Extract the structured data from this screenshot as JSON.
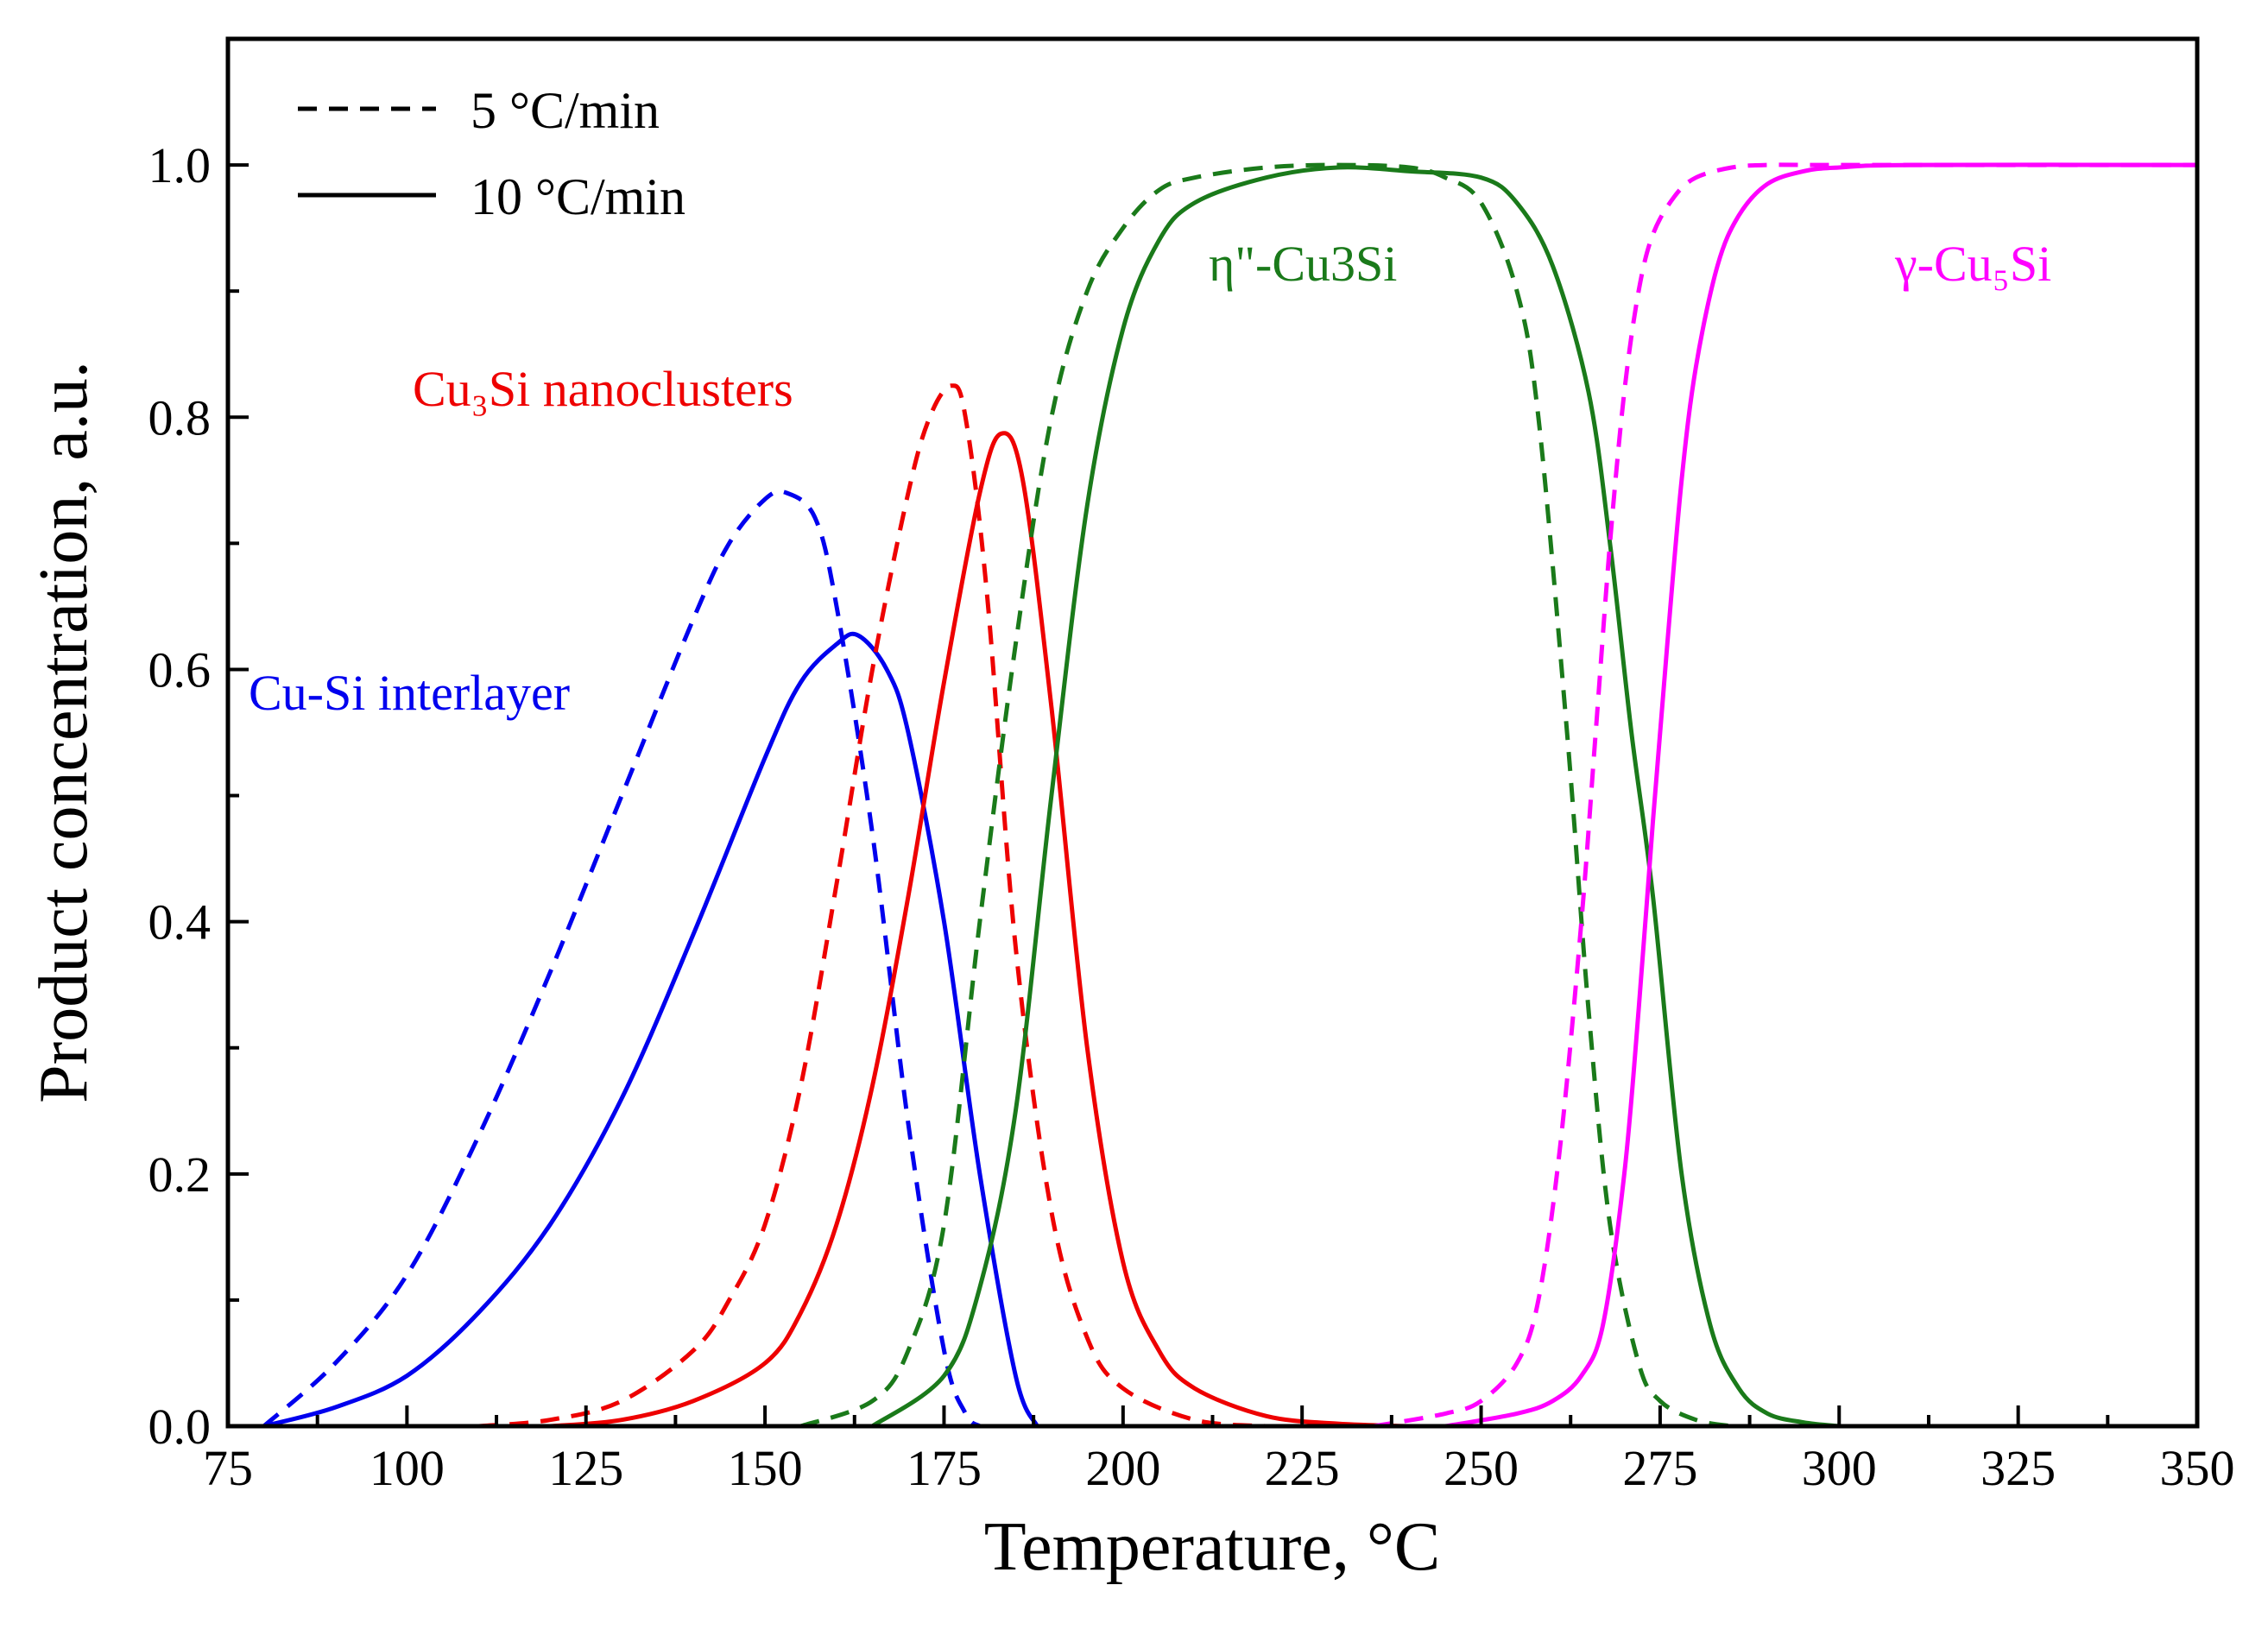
{
  "chart_data": {
    "type": "line",
    "title": "",
    "xlabel": "Temperature, °C",
    "ylabel": "Product concentration, a.u.",
    "xlim": [
      75,
      350
    ],
    "ylim": [
      0,
      1.1
    ],
    "xticks": [
      75,
      100,
      125,
      150,
      175,
      200,
      225,
      250,
      275,
      300,
      325,
      350
    ],
    "yticks": [
      0.0,
      0.2,
      0.4,
      0.6,
      0.8,
      1.0
    ],
    "xtick_labels": [
      "75",
      "100",
      "125",
      "150",
      "175",
      "200",
      "225",
      "250",
      "275",
      "300",
      "325",
      "350"
    ],
    "ytick_labels": [
      "0.0",
      "0.2",
      "0.4",
      "0.6",
      "0.8",
      "1.0"
    ],
    "grid": false,
    "legend": {
      "position": "top-left",
      "entries": [
        {
          "label": "5 °C/min",
          "style": "dashed"
        },
        {
          "label": "10 °C/min",
          "style": "solid"
        }
      ]
    },
    "colors": {
      "cu_si_interlayer": "#0000ee",
      "cu3si_nanoclusters": "#ee0000",
      "eta_cu3si": "#1a7a1a",
      "gamma_cu5si": "#ff00ff"
    },
    "annotations": [
      {
        "text": "Cu-Si interlayer",
        "series": "Cu-Si interlayer",
        "color": "#0000ee"
      },
      {
        "text": "Cu₃Si nanoclusters",
        "series": "Cu3Si nanoclusters",
        "color": "#ee0000"
      },
      {
        "text": "η\"-Cu3Si",
        "series": "η\"-Cu3Si",
        "color": "#1a7a1a"
      },
      {
        "text": "γ-Cu₅Si",
        "series": "γ-Cu5Si",
        "color": "#ff00ff"
      }
    ],
    "series": [
      {
        "name": "Cu-Si interlayer",
        "rate": "5 °C/min",
        "style": "dashed",
        "color": "#0000ee",
        "x": [
          80,
          90,
          100,
          110,
          120,
          130,
          140,
          145,
          150,
          153,
          157,
          160,
          165,
          170,
          175,
          178,
          180
        ],
        "y": [
          0.0,
          0.05,
          0.12,
          0.23,
          0.36,
          0.5,
          0.64,
          0.7,
          0.735,
          0.74,
          0.72,
          0.65,
          0.47,
          0.24,
          0.06,
          0.01,
          0.0
        ]
      },
      {
        "name": "Cu-Si interlayer",
        "rate": "10 °C/min",
        "style": "solid",
        "color": "#0000ee",
        "x": [
          80,
          90,
          100,
          110,
          120,
          130,
          140,
          150,
          155,
          160,
          163,
          167,
          170,
          175,
          180,
          185,
          188
        ],
        "y": [
          0.0,
          0.015,
          0.04,
          0.09,
          0.16,
          0.26,
          0.39,
          0.53,
          0.59,
          0.62,
          0.627,
          0.6,
          0.55,
          0.4,
          0.2,
          0.04,
          0.0
        ]
      },
      {
        "name": "Cu3Si nanoclusters",
        "rate": "5 °C/min",
        "style": "dashed",
        "color": "#ee0000",
        "x": [
          110,
          120,
          130,
          140,
          145,
          150,
          155,
          160,
          165,
          170,
          173,
          176,
          178,
          181,
          185,
          190,
          195,
          200,
          210,
          220
        ],
        "y": [
          0.0,
          0.005,
          0.02,
          0.06,
          0.1,
          0.16,
          0.27,
          0.43,
          0.6,
          0.74,
          0.8,
          0.825,
          0.8,
          0.66,
          0.38,
          0.17,
          0.07,
          0.03,
          0.005,
          0.0
        ]
      },
      {
        "name": "Cu3Si nanoclusters",
        "rate": "10 °C/min",
        "style": "solid",
        "color": "#ee0000",
        "x": [
          120,
          130,
          140,
          150,
          155,
          160,
          165,
          170,
          175,
          180,
          183,
          186,
          190,
          195,
          200,
          205,
          210,
          220,
          230,
          240
        ],
        "y": [
          0.0,
          0.005,
          0.02,
          0.05,
          0.09,
          0.16,
          0.27,
          0.42,
          0.59,
          0.74,
          0.787,
          0.75,
          0.57,
          0.3,
          0.13,
          0.06,
          0.03,
          0.008,
          0.002,
          0.0
        ]
      },
      {
        "name": "η\"-Cu3Si",
        "rate": "5 °C/min",
        "style": "dashed",
        "color": "#1a7a1a",
        "x": [
          155,
          165,
          170,
          175,
          180,
          185,
          190,
          195,
          200,
          205,
          210,
          220,
          230,
          240,
          245,
          250,
          255,
          258,
          262,
          265,
          268,
          272,
          275,
          280,
          285
        ],
        "y": [
          0.0,
          0.02,
          0.06,
          0.16,
          0.4,
          0.62,
          0.8,
          0.9,
          0.95,
          0.98,
          0.99,
          0.998,
          1.0,
          0.998,
          0.99,
          0.97,
          0.9,
          0.8,
          0.55,
          0.33,
          0.16,
          0.05,
          0.02,
          0.005,
          0.0
        ]
      },
      {
        "name": "η\"-Cu3Si",
        "rate": "10 °C/min",
        "style": "solid",
        "color": "#1a7a1a",
        "x": [
          165,
          175,
          180,
          185,
          190,
          195,
          200,
          205,
          210,
          220,
          230,
          240,
          250,
          255,
          260,
          265,
          268,
          271,
          274,
          278,
          282,
          286,
          290,
          295,
          300
        ],
        "y": [
          0.0,
          0.04,
          0.11,
          0.25,
          0.5,
          0.73,
          0.87,
          0.94,
          0.97,
          0.99,
          0.998,
          0.995,
          0.99,
          0.97,
          0.92,
          0.82,
          0.7,
          0.55,
          0.42,
          0.2,
          0.08,
          0.03,
          0.01,
          0.003,
          0.0
        ]
      },
      {
        "name": "γ-Cu5Si",
        "rate": "5 °C/min",
        "style": "dashed",
        "color": "#ff00ff",
        "x": [
          235,
          245,
          250,
          255,
          258,
          261,
          264,
          266,
          268,
          270,
          272,
          274,
          277,
          280,
          285,
          290,
          300,
          350
        ],
        "y": [
          0.0,
          0.01,
          0.02,
          0.05,
          0.1,
          0.22,
          0.4,
          0.55,
          0.7,
          0.82,
          0.9,
          0.945,
          0.975,
          0.99,
          0.998,
          1.0,
          1.0,
          1.0
        ]
      },
      {
        "name": "γ-Cu5Si",
        "rate": "10 °C/min",
        "style": "solid",
        "color": "#ff00ff",
        "x": [
          245,
          255,
          260,
          264,
          267,
          270,
          272,
          274,
          276,
          278,
          280,
          283,
          286,
          290,
          295,
          300,
          310,
          350
        ],
        "y": [
          0.0,
          0.01,
          0.02,
          0.04,
          0.08,
          0.2,
          0.33,
          0.48,
          0.62,
          0.75,
          0.84,
          0.92,
          0.96,
          0.985,
          0.995,
          0.998,
          1.0,
          1.0
        ]
      }
    ]
  }
}
